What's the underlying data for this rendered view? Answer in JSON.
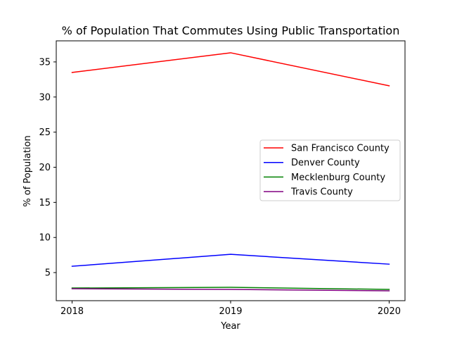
{
  "chart_data": {
    "type": "line",
    "title": "% of Population That Commutes Using Public Transportation",
    "xlabel": "Year",
    "ylabel": "% of Population",
    "categories": [
      "2018",
      "2019",
      "2020"
    ],
    "x": [
      2018,
      2019,
      2020
    ],
    "xlim": [
      2017.9,
      2020.1
    ],
    "ylim": [
      1.0,
      38.0
    ],
    "yticks": [
      5,
      10,
      15,
      20,
      25,
      30,
      35
    ],
    "grid": false,
    "legend_position": "center-right",
    "series": [
      {
        "name": "San Francisco County",
        "color": "#ff0000",
        "values": [
          33.5,
          36.3,
          31.6
        ]
      },
      {
        "name": "Denver County",
        "color": "#0000ff",
        "values": [
          5.9,
          7.6,
          6.2
        ]
      },
      {
        "name": "Mecklenburg County",
        "color": "#008000",
        "values": [
          2.8,
          2.9,
          2.6
        ]
      },
      {
        "name": "Travis County",
        "color": "#800080",
        "values": [
          2.7,
          2.6,
          2.4
        ]
      }
    ]
  }
}
